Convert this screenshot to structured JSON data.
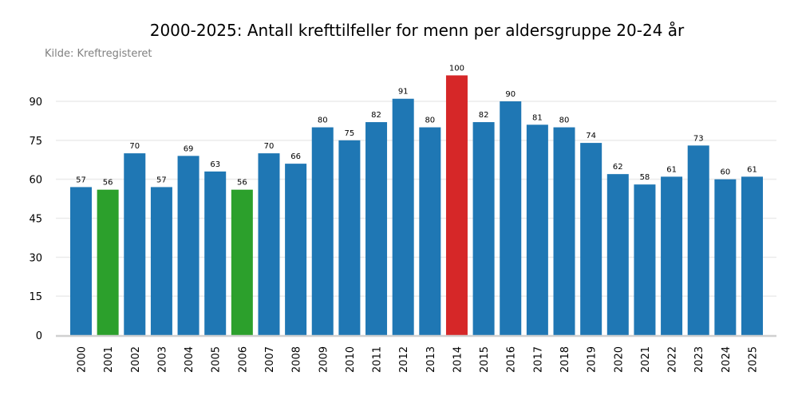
{
  "chart_data": {
    "type": "bar",
    "title": "2000-2025: Antall krefttilfeller for menn per aldersgruppe 20-24 år",
    "subtitle": "Kilde: Kreftregisteret",
    "xlabel": "",
    "ylabel": "",
    "categories": [
      "2000",
      "2001",
      "2002",
      "2003",
      "2004",
      "2005",
      "2006",
      "2007",
      "2008",
      "2009",
      "2010",
      "2011",
      "2012",
      "2013",
      "2014",
      "2015",
      "2016",
      "2017",
      "2018",
      "2019",
      "2020",
      "2021",
      "2022",
      "2023",
      "2024",
      "2025"
    ],
    "values": [
      57,
      56,
      70,
      57,
      69,
      63,
      56,
      70,
      66,
      80,
      75,
      82,
      91,
      80,
      100,
      82,
      90,
      81,
      80,
      74,
      62,
      58,
      61,
      73,
      60,
      61
    ],
    "bar_colors": [
      "#1f77b4",
      "#2ca02c",
      "#1f77b4",
      "#1f77b4",
      "#1f77b4",
      "#1f77b4",
      "#2ca02c",
      "#1f77b4",
      "#1f77b4",
      "#1f77b4",
      "#1f77b4",
      "#1f77b4",
      "#1f77b4",
      "#1f77b4",
      "#d62728",
      "#1f77b4",
      "#1f77b4",
      "#1f77b4",
      "#1f77b4",
      "#1f77b4",
      "#1f77b4",
      "#1f77b4",
      "#1f77b4",
      "#1f77b4",
      "#1f77b4",
      "#1f77b4"
    ],
    "yticks": [
      0,
      15,
      30,
      45,
      60,
      75,
      90
    ],
    "ylim": [
      0,
      100
    ],
    "grid": true,
    "colors": {
      "default": "#1f77b4",
      "minimum": "#2ca02c",
      "maximum": "#d62728",
      "grid": "#ebebeb",
      "axis": "#d0d0d0"
    }
  }
}
